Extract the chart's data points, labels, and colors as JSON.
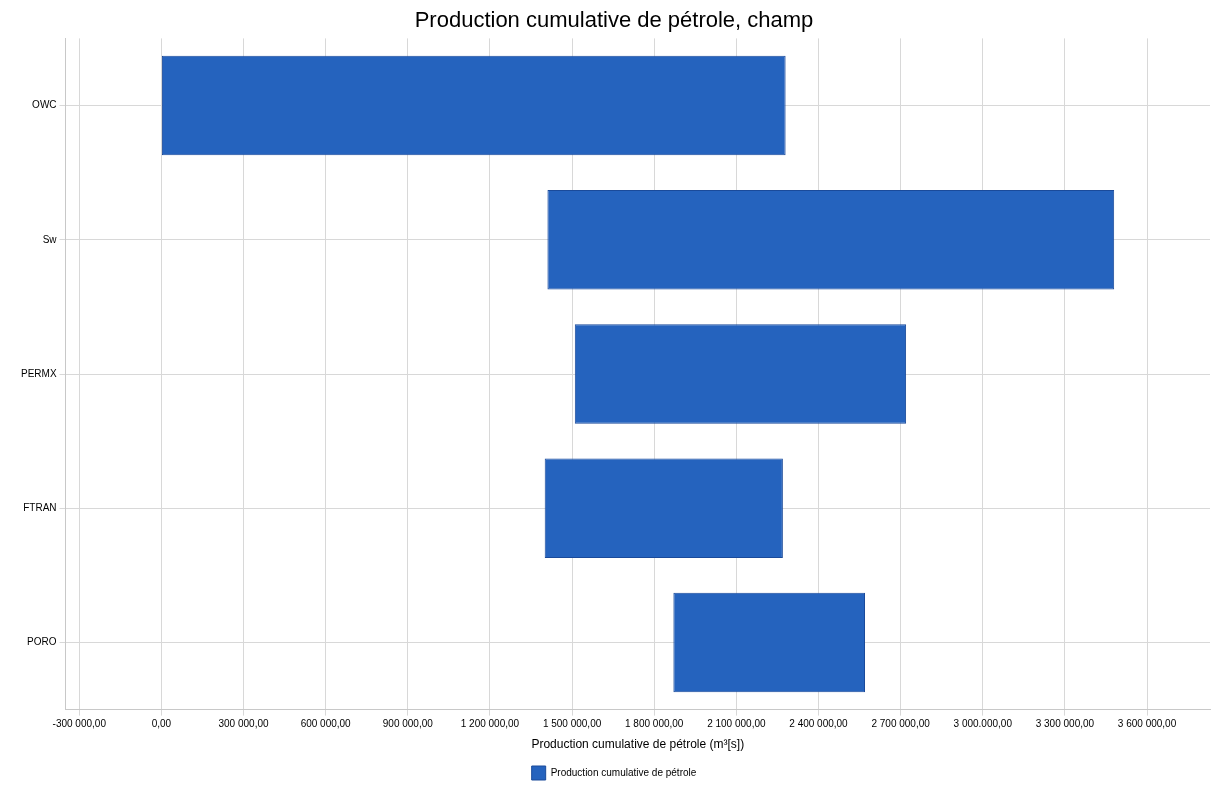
{
  "chart_data": {
    "type": "bar",
    "orientation": "horizontal",
    "title": "Production cumulative de pétrole, champ",
    "xlabel": "Production cumulative de pétrole (m³[s])",
    "categories": [
      "OWC",
      "Sw",
      "PERMX",
      "FTRAN",
      "PORO"
    ],
    "series": [
      {
        "name": "Production cumulative de pétrole",
        "color": "#2563be",
        "base": [
          0,
          1410000,
          1510000,
          1400000,
          1870000
        ],
        "values": [
          2280000,
          2070000,
          1210000,
          870000,
          700000
        ]
      }
    ],
    "xlim": [
      -350000,
      3830000
    ],
    "xticks": [
      {
        "value": -300000,
        "label": "-300 000,00"
      },
      {
        "value": 0,
        "label": "0,00"
      },
      {
        "value": 300000,
        "label": "300 000,00"
      },
      {
        "value": 600000,
        "label": "600 000,00"
      },
      {
        "value": 900000,
        "label": "900 000,00"
      },
      {
        "value": 1200000,
        "label": "1 200 000,00"
      },
      {
        "value": 1500000,
        "label": "1 500 000,00"
      },
      {
        "value": 1800000,
        "label": "1 800 000,00"
      },
      {
        "value": 2100000,
        "label": "2 100 000,00"
      },
      {
        "value": 2400000,
        "label": "2 400 000,00"
      },
      {
        "value": 2700000,
        "label": "2 700 000,00"
      },
      {
        "value": 3000000,
        "label": "3 000.000,00"
      },
      {
        "value": 3300000,
        "label": "3 300 000,00"
      },
      {
        "value": 3600000,
        "label": "3 600 000,00"
      }
    ],
    "grid": true,
    "legend": "bottom"
  }
}
